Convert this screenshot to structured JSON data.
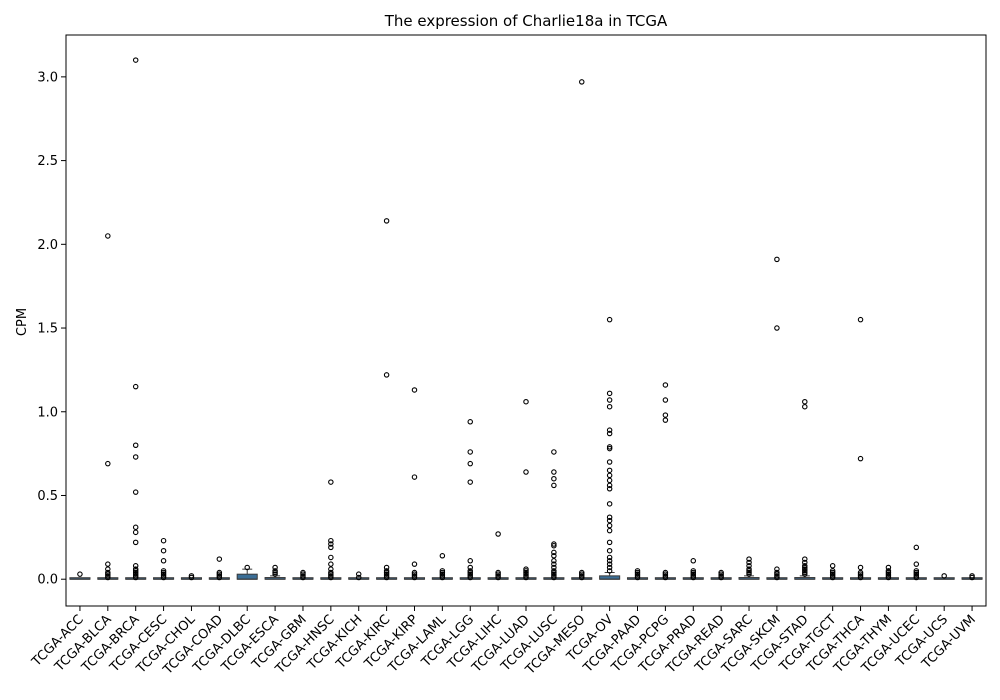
{
  "chart_data": {
    "type": "box",
    "title": "The expression of Charlie18a in TCGA",
    "xlabel": "",
    "ylabel": "CPM",
    "ylim": [
      -0.16,
      3.25
    ],
    "yticks": [
      0.0,
      0.5,
      1.0,
      1.5,
      2.0,
      2.5,
      3.0
    ],
    "ytick_labels": [
      "0.0",
      "0.5",
      "1.0",
      "1.5",
      "2.0",
      "2.5",
      "3.0"
    ],
    "grid": false,
    "box_color": "#3b6e96",
    "categories": [
      "TCGA-ACC",
      "TCGA-BLCA",
      "TCGA-BRCA",
      "TCGA-CESC",
      "TCGA-CHOL",
      "TCGA-COAD",
      "TCGA-DLBC",
      "TCGA-ESCA",
      "TCGA-GBM",
      "TCGA-HNSC",
      "TCGA-KICH",
      "TCGA-KIRC",
      "TCGA-KIRP",
      "TCGA-LAML",
      "TCGA-LGG",
      "TCGA-LIHC",
      "TCGA-LUAD",
      "TCGA-LUSC",
      "TCGA-MESO",
      "TCGA-OV",
      "TCGA-PAAD",
      "TCGA-PCPG",
      "TCGA-PRAD",
      "TCGA-READ",
      "TCGA-SARC",
      "TCGA-SKCM",
      "TCGA-STAD",
      "TCGA-TGCT",
      "TCGA-THCA",
      "TCGA-THYM",
      "TCGA-UCEC",
      "TCGA-UCS",
      "TCGA-UVM"
    ],
    "boxes": [
      {
        "q1": 0,
        "median": 0,
        "q3": 0,
        "whisker_low": 0,
        "whisker_high": 0,
        "outliers": [
          0.03
        ]
      },
      {
        "q1": 0,
        "median": 0,
        "q3": 0,
        "whisker_low": 0,
        "whisker_high": 0,
        "outliers": [
          2.05,
          0.69,
          0.09,
          0.06,
          0.04,
          0.03,
          0.02,
          0.01
        ]
      },
      {
        "q1": 0,
        "median": 0,
        "q3": 0,
        "whisker_low": 0,
        "whisker_high": 0,
        "outliers": [
          3.1,
          1.15,
          0.8,
          0.73,
          0.52,
          0.31,
          0.28,
          0.22,
          0.08,
          0.06,
          0.05,
          0.04,
          0.03,
          0.02,
          0.01
        ]
      },
      {
        "q1": 0,
        "median": 0,
        "q3": 0,
        "whisker_low": 0,
        "whisker_high": 0,
        "outliers": [
          0.23,
          0.17,
          0.11,
          0.05,
          0.04,
          0.03,
          0.02,
          0.01
        ]
      },
      {
        "q1": 0,
        "median": 0,
        "q3": 0,
        "whisker_low": 0,
        "whisker_high": 0,
        "outliers": [
          0.02,
          0.01
        ]
      },
      {
        "q1": 0,
        "median": 0,
        "q3": 0,
        "whisker_low": 0,
        "whisker_high": 0,
        "outliers": [
          0.12,
          0.04,
          0.03,
          0.02,
          0.01
        ]
      },
      {
        "q1": 0,
        "median": 0,
        "q3": 0.03,
        "whisker_low": 0,
        "whisker_high": 0.06,
        "outliers": [
          0.07
        ]
      },
      {
        "q1": 0,
        "median": 0,
        "q3": 0.01,
        "whisker_low": 0,
        "whisker_high": 0.02,
        "outliers": [
          0.07,
          0.05,
          0.04,
          0.03
        ]
      },
      {
        "q1": 0,
        "median": 0,
        "q3": 0,
        "whisker_low": 0,
        "whisker_high": 0,
        "outliers": [
          0.04,
          0.03,
          0.02,
          0.01
        ]
      },
      {
        "q1": 0,
        "median": 0,
        "q3": 0,
        "whisker_low": 0,
        "whisker_high": 0,
        "outliers": [
          0.58,
          0.23,
          0.21,
          0.19,
          0.13,
          0.09,
          0.06,
          0.04,
          0.03,
          0.02,
          0.01
        ]
      },
      {
        "q1": 0,
        "median": 0,
        "q3": 0,
        "whisker_low": 0,
        "whisker_high": 0,
        "outliers": [
          0.03,
          0.01
        ]
      },
      {
        "q1": 0,
        "median": 0,
        "q3": 0,
        "whisker_low": 0,
        "whisker_high": 0,
        "outliers": [
          2.14,
          1.22,
          0.07,
          0.05,
          0.04,
          0.03,
          0.02,
          0.01
        ]
      },
      {
        "q1": 0,
        "median": 0,
        "q3": 0,
        "whisker_low": 0,
        "whisker_high": 0,
        "outliers": [
          1.13,
          0.61,
          0.09,
          0.04,
          0.03,
          0.02,
          0.01
        ]
      },
      {
        "q1": 0,
        "median": 0,
        "q3": 0,
        "whisker_low": 0,
        "whisker_high": 0,
        "outliers": [
          0.14,
          0.05,
          0.04,
          0.03,
          0.02,
          0.01
        ]
      },
      {
        "q1": 0,
        "median": 0,
        "q3": 0,
        "whisker_low": 0,
        "whisker_high": 0,
        "outliers": [
          0.94,
          0.76,
          0.69,
          0.58,
          0.11,
          0.07,
          0.05,
          0.04,
          0.03,
          0.02,
          0.01
        ]
      },
      {
        "q1": 0,
        "median": 0,
        "q3": 0,
        "whisker_low": 0,
        "whisker_high": 0,
        "outliers": [
          0.27,
          0.04,
          0.03,
          0.02,
          0.01
        ]
      },
      {
        "q1": 0,
        "median": 0,
        "q3": 0,
        "whisker_low": 0,
        "whisker_high": 0,
        "outliers": [
          1.06,
          0.64,
          0.06,
          0.05,
          0.04,
          0.03,
          0.02,
          0.01
        ]
      },
      {
        "q1": 0,
        "median": 0,
        "q3": 0,
        "whisker_low": 0,
        "whisker_high": 0,
        "outliers": [
          0.76,
          0.64,
          0.6,
          0.56,
          0.21,
          0.2,
          0.16,
          0.14,
          0.11,
          0.09,
          0.07,
          0.05,
          0.04,
          0.03,
          0.02,
          0.01
        ]
      },
      {
        "q1": 0,
        "median": 0,
        "q3": 0,
        "whisker_low": 0,
        "whisker_high": 0,
        "outliers": [
          2.97,
          0.04,
          0.03,
          0.02,
          0.01
        ]
      },
      {
        "q1": 0,
        "median": 0,
        "q3": 0.02,
        "whisker_low": 0,
        "whisker_high": 0.04,
        "outliers": [
          1.55,
          1.11,
          1.07,
          1.03,
          0.89,
          0.87,
          0.79,
          0.78,
          0.7,
          0.65,
          0.62,
          0.59,
          0.56,
          0.54,
          0.45,
          0.37,
          0.35,
          0.32,
          0.29,
          0.22,
          0.17,
          0.13,
          0.11,
          0.09,
          0.07,
          0.05
        ]
      },
      {
        "q1": 0,
        "median": 0,
        "q3": 0,
        "whisker_low": 0,
        "whisker_high": 0,
        "outliers": [
          0.05,
          0.04,
          0.03,
          0.02,
          0.01
        ]
      },
      {
        "q1": 0,
        "median": 0,
        "q3": 0,
        "whisker_low": 0,
        "whisker_high": 0,
        "outliers": [
          1.16,
          1.07,
          0.98,
          0.95,
          0.04,
          0.03,
          0.02,
          0.01
        ]
      },
      {
        "q1": 0,
        "median": 0,
        "q3": 0,
        "whisker_low": 0,
        "whisker_high": 0,
        "outliers": [
          0.11,
          0.05,
          0.04,
          0.03,
          0.02,
          0.01
        ]
      },
      {
        "q1": 0,
        "median": 0,
        "q3": 0,
        "whisker_low": 0,
        "whisker_high": 0,
        "outliers": [
          0.04,
          0.03,
          0.02,
          0.01
        ]
      },
      {
        "q1": 0,
        "median": 0,
        "q3": 0.01,
        "whisker_low": 0,
        "whisker_high": 0.02,
        "outliers": [
          0.12,
          0.1,
          0.08,
          0.06,
          0.05,
          0.04,
          0.03
        ]
      },
      {
        "q1": 0,
        "median": 0,
        "q3": 0,
        "whisker_low": 0,
        "whisker_high": 0,
        "outliers": [
          1.91,
          1.5,
          0.06,
          0.04,
          0.03,
          0.02,
          0.01
        ]
      },
      {
        "q1": 0,
        "median": 0,
        "q3": 0.01,
        "whisker_low": 0,
        "whisker_high": 0.02,
        "outliers": [
          1.06,
          1.03,
          0.12,
          0.1,
          0.08,
          0.07,
          0.06,
          0.05,
          0.04,
          0.03
        ]
      },
      {
        "q1": 0,
        "median": 0,
        "q3": 0,
        "whisker_low": 0,
        "whisker_high": 0,
        "outliers": [
          0.08,
          0.05,
          0.04,
          0.03,
          0.02,
          0.01
        ]
      },
      {
        "q1": 0,
        "median": 0,
        "q3": 0,
        "whisker_low": 0,
        "whisker_high": 0,
        "outliers": [
          1.55,
          0.72,
          0.07,
          0.04,
          0.03,
          0.02,
          0.01
        ]
      },
      {
        "q1": 0,
        "median": 0,
        "q3": 0,
        "whisker_low": 0,
        "whisker_high": 0,
        "outliers": [
          0.07,
          0.05,
          0.04,
          0.03,
          0.02,
          0.01
        ]
      },
      {
        "q1": 0,
        "median": 0,
        "q3": 0,
        "whisker_low": 0,
        "whisker_high": 0,
        "outliers": [
          0.19,
          0.09,
          0.05,
          0.04,
          0.03,
          0.02,
          0.01
        ]
      },
      {
        "q1": 0,
        "median": 0,
        "q3": 0,
        "whisker_low": 0,
        "whisker_high": 0,
        "outliers": [
          0.02
        ]
      },
      {
        "q1": 0,
        "median": 0,
        "q3": 0,
        "whisker_low": 0,
        "whisker_high": 0,
        "outliers": [
          0.02,
          0.01
        ]
      }
    ]
  }
}
